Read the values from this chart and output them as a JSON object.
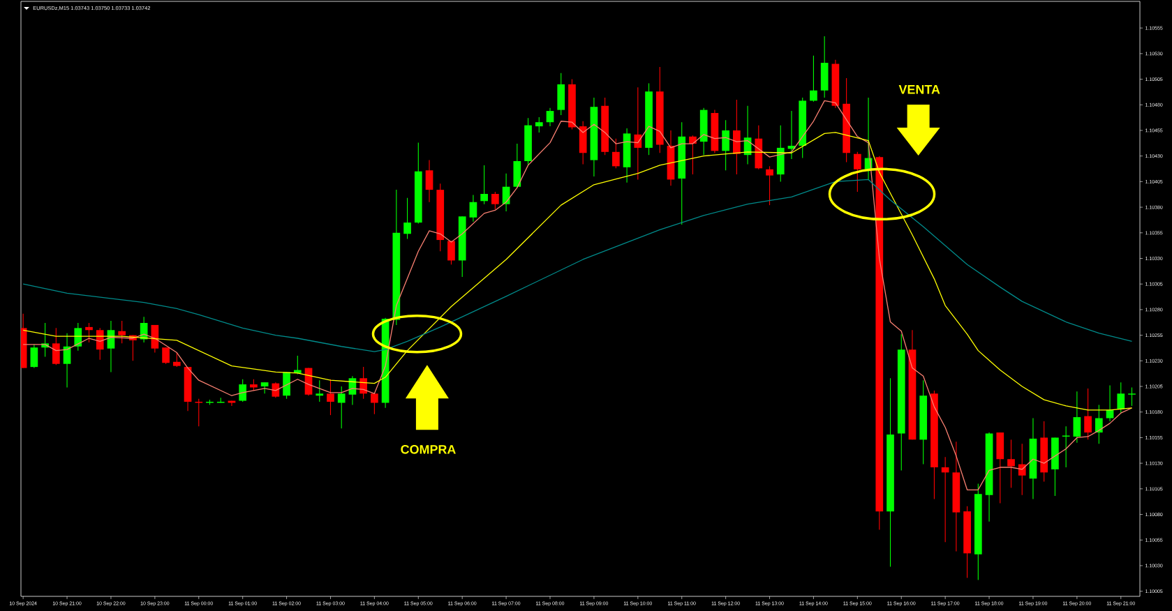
{
  "chart_data": {
    "type": "candlestick",
    "annotations": [
      "EURUSDz,M15  1.03743 1.03750 1.03733 1.03742",
      "COMPRA",
      "VENTA"
    ],
    "x": [
      "2024-09-10T20:00",
      "2024-09-10T20:15",
      "2024-09-10T20:30",
      "2024-09-10T20:45",
      "2024-09-10T21:00",
      "2024-09-10T21:15",
      "2024-09-10T21:30",
      "2024-09-10T21:45",
      "2024-09-10T22:00",
      "2024-09-10T22:15",
      "2024-09-10T22:30",
      "2024-09-10T22:45",
      "2024-09-10T23:00",
      "2024-09-10T23:15",
      "2024-09-10T23:30",
      "2024-09-10T23:45",
      "2024-09-11T00:00",
      "2024-09-11T00:15",
      "2024-09-11T00:30",
      "2024-09-11T00:45",
      "2024-09-11T01:00",
      "2024-09-11T01:15",
      "2024-09-11T01:30",
      "2024-09-11T01:45",
      "2024-09-11T02:00",
      "2024-09-11T02:15",
      "2024-09-11T02:30",
      "2024-09-11T02:45",
      "2024-09-11T03:00",
      "2024-09-11T03:15",
      "2024-09-11T03:30",
      "2024-09-11T03:45",
      "2024-09-11T04:00",
      "2024-09-11T04:15",
      "2024-09-11T04:30",
      "2024-09-11T04:45",
      "2024-09-11T05:00",
      "2024-09-11T05:15",
      "2024-09-11T05:30",
      "2024-09-11T05:45",
      "2024-09-11T06:00",
      "2024-09-11T06:15",
      "2024-09-11T06:30",
      "2024-09-11T06:45",
      "2024-09-11T07:00",
      "2024-09-11T07:15",
      "2024-09-11T07:30",
      "2024-09-11T07:45",
      "2024-09-11T08:00",
      "2024-09-11T08:15",
      "2024-09-11T08:30",
      "2024-09-11T08:45",
      "2024-09-11T09:00",
      "2024-09-11T09:15",
      "2024-09-11T09:30",
      "2024-09-11T09:45",
      "2024-09-11T10:00",
      "2024-09-11T10:15",
      "2024-09-11T10:30",
      "2024-09-11T10:45",
      "2024-09-11T11:00",
      "2024-09-11T11:15",
      "2024-09-11T11:30",
      "2024-09-11T11:45",
      "2024-09-11T12:00",
      "2024-09-11T12:15",
      "2024-09-11T12:30",
      "2024-09-11T12:45",
      "2024-09-11T13:00",
      "2024-09-11T13:15",
      "2024-09-11T13:30",
      "2024-09-11T13:45",
      "2024-09-11T14:00",
      "2024-09-11T14:15",
      "2024-09-11T14:30",
      "2024-09-11T14:45",
      "2024-09-11T15:00",
      "2024-09-11T15:15",
      "2024-09-11T15:30",
      "2024-09-11T15:45",
      "2024-09-11T16:00",
      "2024-09-11T16:15",
      "2024-09-11T16:30",
      "2024-09-11T16:45",
      "2024-09-11T17:00",
      "2024-09-11T17:15",
      "2024-09-11T17:30",
      "2024-09-11T17:45",
      "2024-09-11T18:00",
      "2024-09-11T18:15",
      "2024-09-11T18:30",
      "2024-09-11T18:45",
      "2024-09-11T19:00",
      "2024-09-11T19:15",
      "2024-09-11T19:30",
      "2024-09-11T19:45",
      "2024-09-11T20:00",
      "2024-09-11T20:15",
      "2024-09-11T20:30",
      "2024-09-11T20:45",
      "2024-09-11T21:00",
      "2024-09-11T21:15"
    ],
    "ohlc": [
      [
        1.10262,
        1.10276,
        1.10223,
        1.10223
      ],
      [
        1.10224,
        1.10246,
        1.10223,
        1.10243
      ],
      [
        1.10243,
        1.10267,
        1.10234,
        1.10247
      ],
      [
        1.10247,
        1.10262,
        1.10226,
        1.10227
      ],
      [
        1.10227,
        1.10257,
        1.10204,
        1.10244
      ],
      [
        1.10244,
        1.10267,
        1.1024,
        1.10262
      ],
      [
        1.10263,
        1.10267,
        1.10248,
        1.1026
      ],
      [
        1.1026,
        1.10262,
        1.10231,
        1.10241
      ],
      [
        1.10242,
        1.10269,
        1.10219,
        1.1026
      ],
      [
        1.10259,
        1.10269,
        1.10247,
        1.10255
      ],
      [
        1.10255,
        1.10255,
        1.1023,
        1.1025
      ],
      [
        1.10251,
        1.10273,
        1.10248,
        1.10267
      ],
      [
        1.10265,
        1.10265,
        1.10238,
        1.10242
      ],
      [
        1.10243,
        1.10243,
        1.10227,
        1.10228
      ],
      [
        1.10229,
        1.10238,
        1.10224,
        1.10225
      ],
      [
        1.10224,
        1.10224,
        1.10181,
        1.1019
      ],
      [
        1.1019,
        1.10193,
        1.10166,
        1.10189
      ],
      [
        1.10189,
        1.10192,
        1.10187,
        1.1019
      ],
      [
        1.10189,
        1.10194,
        1.10189,
        1.1019
      ],
      [
        1.10191,
        1.10191,
        1.10186,
        1.10189
      ],
      [
        1.10191,
        1.10212,
        1.1019,
        1.10207
      ],
      [
        1.10207,
        1.10212,
        1.10201,
        1.10204
      ],
      [
        1.10205,
        1.10209,
        1.10198,
        1.10209
      ],
      [
        1.10208,
        1.10209,
        1.10194,
        1.10195
      ],
      [
        1.10196,
        1.10219,
        1.10193,
        1.10219
      ],
      [
        1.10218,
        1.10235,
        1.10217,
        1.10221
      ],
      [
        1.10223,
        1.10223,
        1.10196,
        1.10197
      ],
      [
        1.10196,
        1.10211,
        1.1019,
        1.10198
      ],
      [
        1.10198,
        1.10212,
        1.10177,
        1.1019
      ],
      [
        1.10189,
        1.10205,
        1.10164,
        1.10198
      ],
      [
        1.10197,
        1.10215,
        1.10187,
        1.10213
      ],
      [
        1.10213,
        1.10224,
        1.10193,
        1.10198
      ],
      [
        1.10198,
        1.10198,
        1.10178,
        1.10189
      ],
      [
        1.10189,
        1.10272,
        1.10184,
        1.10271
      ],
      [
        1.1027,
        1.10397,
        1.10265,
        1.10355
      ],
      [
        1.10354,
        1.10389,
        1.10349,
        1.10365
      ],
      [
        1.10365,
        1.10443,
        1.10364,
        1.10415
      ],
      [
        1.10416,
        1.10426,
        1.10385,
        1.10397
      ],
      [
        1.10397,
        1.10403,
        1.10337,
        1.10348
      ],
      [
        1.10347,
        1.10347,
        1.10324,
        1.10328
      ],
      [
        1.10328,
        1.10371,
        1.10312,
        1.10371
      ],
      [
        1.1037,
        1.10392,
        1.10366,
        1.10385
      ],
      [
        1.10386,
        1.10421,
        1.10383,
        1.10393
      ],
      [
        1.10393,
        1.10395,
        1.10378,
        1.10383
      ],
      [
        1.10383,
        1.10413,
        1.10376,
        1.104
      ],
      [
        1.104,
        1.10442,
        1.10399,
        1.10425
      ],
      [
        1.10425,
        1.10467,
        1.10421,
        1.1046
      ],
      [
        1.10459,
        1.10468,
        1.10453,
        1.10463
      ],
      [
        1.10463,
        1.10477,
        1.10459,
        1.10474
      ],
      [
        1.10475,
        1.10511,
        1.1047,
        1.105
      ],
      [
        1.105,
        1.10505,
        1.10456,
        1.10458
      ],
      [
        1.10459,
        1.10464,
        1.10422,
        1.10433
      ],
      [
        1.10426,
        1.10487,
        1.1041,
        1.10478
      ],
      [
        1.10479,
        1.10487,
        1.10431,
        1.10434
      ],
      [
        1.10434,
        1.10447,
        1.10418,
        1.1042
      ],
      [
        1.10419,
        1.10457,
        1.10404,
        1.10452
      ],
      [
        1.10451,
        1.10497,
        1.10407,
        1.10438
      ],
      [
        1.10438,
        1.10501,
        1.10431,
        1.10493
      ],
      [
        1.10493,
        1.10517,
        1.10433,
        1.10441
      ],
      [
        1.1044,
        1.10455,
        1.10401,
        1.10407
      ],
      [
        1.10408,
        1.10463,
        1.10363,
        1.10449
      ],
      [
        1.10449,
        1.1045,
        1.10412,
        1.10442
      ],
      [
        1.10444,
        1.10477,
        1.10431,
        1.10475
      ],
      [
        1.10472,
        1.10475,
        1.10433,
        1.10435
      ],
      [
        1.10435,
        1.10465,
        1.10416,
        1.10455
      ],
      [
        1.10455,
        1.10485,
        1.10412,
        1.10432
      ],
      [
        1.10431,
        1.10479,
        1.10422,
        1.10448
      ],
      [
        1.10447,
        1.1046,
        1.10417,
        1.10418
      ],
      [
        1.10417,
        1.1042,
        1.10382,
        1.10411
      ],
      [
        1.10412,
        1.1046,
        1.10405,
        1.10438
      ],
      [
        1.10437,
        1.10474,
        1.10427,
        1.1044
      ],
      [
        1.1044,
        1.10487,
        1.10428,
        1.10484
      ],
      [
        1.10484,
        1.10528,
        1.10483,
        1.10494
      ],
      [
        1.10494,
        1.10547,
        1.10487,
        1.10521
      ],
      [
        1.1052,
        1.10524,
        1.10477,
        1.10479
      ],
      [
        1.10481,
        1.10506,
        1.10424,
        1.10433
      ],
      [
        1.10432,
        1.10434,
        1.10395,
        1.10417
      ],
      [
        1.10417,
        1.10487,
        1.10407,
        1.10428
      ],
      [
        1.10429,
        1.1043,
        1.10065,
        1.10083
      ],
      [
        1.10083,
        1.10213,
        1.10029,
        1.10158
      ],
      [
        1.10159,
        1.10256,
        1.10123,
        1.10241
      ],
      [
        1.10241,
        1.1026,
        1.10153,
        1.10153
      ],
      [
        1.10153,
        1.10211,
        1.10129,
        1.10196
      ],
      [
        1.10198,
        1.10201,
        1.10095,
        1.10126
      ],
      [
        1.10126,
        1.10136,
        1.10053,
        1.10121
      ],
      [
        1.10121,
        1.10151,
        1.10044,
        1.10082
      ],
      [
        1.10083,
        1.10088,
        1.10018,
        1.10042
      ],
      [
        1.10041,
        1.1011,
        1.10016,
        1.101
      ],
      [
        1.10099,
        1.1016,
        1.10073,
        1.10159
      ],
      [
        1.1016,
        1.1016,
        1.10091,
        1.10134
      ],
      [
        1.10134,
        1.10153,
        1.10106,
        1.10127
      ],
      [
        1.10129,
        1.10149,
        1.10099,
        1.10118
      ],
      [
        1.10115,
        1.10174,
        1.10095,
        1.10154
      ],
      [
        1.10155,
        1.10171,
        1.10112,
        1.10121
      ],
      [
        1.10124,
        1.10155,
        1.10098,
        1.10155
      ],
      [
        1.10156,
        1.10166,
        1.10126,
        1.10157
      ],
      [
        1.10156,
        1.102,
        1.1015,
        1.10175
      ],
      [
        1.10176,
        1.10203,
        1.10153,
        1.1016
      ],
      [
        1.1016,
        1.10187,
        1.10149,
        1.10174
      ],
      [
        1.10174,
        1.10206,
        1.10171,
        1.10182
      ],
      [
        1.10183,
        1.10209,
        1.10179,
        1.10198
      ],
      [
        1.10197,
        1.10204,
        1.10186,
        1.10198
      ]
    ],
    "series": [
      {
        "type": "line",
        "color": "#fa8072",
        "x": [
          "2024-09-10T20:00",
          "2024-09-10T20:30",
          "2024-09-10T20:45",
          "2024-09-10T21:00",
          "2024-09-10T21:30",
          "2024-09-10T21:45",
          "2024-09-10T22:00",
          "2024-09-10T22:30",
          "2024-09-10T22:45",
          "2024-09-10T23:00",
          "2024-09-10T23:30",
          "2024-09-10T23:45",
          "2024-09-11T00:00",
          "2024-09-11T00:45",
          "2024-09-11T01:00",
          "2024-09-11T01:30",
          "2024-09-11T01:45",
          "2024-09-11T02:15",
          "2024-09-11T02:30",
          "2024-09-11T03:00",
          "2024-09-11T03:15",
          "2024-09-11T03:30",
          "2024-09-11T03:45",
          "2024-09-11T04:00",
          "2024-09-11T04:15",
          "2024-09-11T04:30",
          "2024-09-11T05:00",
          "2024-09-11T05:15",
          "2024-09-11T05:30",
          "2024-09-11T05:45",
          "2024-09-11T06:00",
          "2024-09-11T06:30",
          "2024-09-11T06:45",
          "2024-09-11T07:00",
          "2024-09-11T07:15",
          "2024-09-11T07:30",
          "2024-09-11T08:00",
          "2024-09-11T08:15",
          "2024-09-11T08:30",
          "2024-09-11T08:45",
          "2024-09-11T09:00",
          "2024-09-11T09:15",
          "2024-09-11T09:30",
          "2024-09-11T09:45",
          "2024-09-11T10:00",
          "2024-09-11T10:15",
          "2024-09-11T10:30",
          "2024-09-11T10:45",
          "2024-09-11T11:00",
          "2024-09-11T11:15",
          "2024-09-11T11:30",
          "2024-09-11T11:45",
          "2024-09-11T12:00",
          "2024-09-11T12:15",
          "2024-09-11T12:30",
          "2024-09-11T13:00",
          "2024-09-11T13:30",
          "2024-09-11T14:00",
          "2024-09-11T14:15",
          "2024-09-11T14:30",
          "2024-09-11T15:00",
          "2024-09-11T15:15",
          "2024-09-11T15:30",
          "2024-09-11T15:45",
          "2024-09-11T16:00",
          "2024-09-11T16:15",
          "2024-09-11T16:30",
          "2024-09-11T16:45",
          "2024-09-11T17:00",
          "2024-09-11T17:15",
          "2024-09-11T17:30",
          "2024-09-11T17:45",
          "2024-09-11T18:00",
          "2024-09-11T18:15",
          "2024-09-11T18:30",
          "2024-09-11T18:45",
          "2024-09-11T19:00",
          "2024-09-11T19:15",
          "2024-09-11T19:30",
          "2024-09-11T19:45",
          "2024-09-11T20:00",
          "2024-09-11T20:15",
          "2024-09-11T20:30",
          "2024-09-11T20:45",
          "2024-09-11T21:00",
          "2024-09-11T21:15"
        ],
        "values": [
          1.10246,
          1.10246,
          1.1024,
          1.10241,
          1.10252,
          1.10249,
          1.10253,
          1.10252,
          1.10256,
          1.10252,
          1.10238,
          1.10223,
          1.10211,
          1.10196,
          1.10199,
          1.10203,
          1.10201,
          1.10212,
          1.10207,
          1.10199,
          1.10199,
          1.10203,
          1.10202,
          1.10198,
          1.10225,
          1.10284,
          1.10337,
          1.10357,
          1.10354,
          1.10346,
          1.10354,
          1.10374,
          1.10377,
          1.10385,
          1.10399,
          1.10421,
          1.10443,
          1.10464,
          1.10463,
          1.10453,
          1.10461,
          1.10453,
          1.10442,
          1.10444,
          1.10443,
          1.10459,
          1.10454,
          1.10438,
          1.10442,
          1.10442,
          1.10451,
          1.10447,
          1.10448,
          1.10444,
          1.10445,
          1.10429,
          1.10434,
          1.10464,
          1.10484,
          1.10482,
          1.10449,
          1.10443,
          1.1033,
          1.10268,
          1.10259,
          1.10223,
          1.10215,
          1.10185,
          1.10165,
          1.10137,
          1.10104,
          1.10104,
          1.10123,
          1.10126,
          1.10126,
          1.10124,
          1.10134,
          1.1013,
          1.10137,
          1.10144,
          1.10155,
          1.10156,
          1.10162,
          1.10169,
          1.10179,
          1.10184
        ]
      },
      {
        "type": "line",
        "color": "#ffff00",
        "x": [
          "2024-09-10T20:00",
          "2024-09-10T20:45",
          "2024-09-10T22:15",
          "2024-09-10T23:30",
          "2024-09-11T00:45",
          "2024-09-11T01:45",
          "2024-09-11T02:15",
          "2024-09-11T03:00",
          "2024-09-11T04:00",
          "2024-09-11T04:15",
          "2024-09-11T04:45",
          "2024-09-11T05:45",
          "2024-09-11T07:00",
          "2024-09-11T08:15",
          "2024-09-11T09:00",
          "2024-09-11T10:00",
          "2024-09-11T10:30",
          "2024-09-11T11:30",
          "2024-09-11T12:30",
          "2024-09-11T13:30",
          "2024-09-11T14:15",
          "2024-09-11T14:30",
          "2024-09-11T15:15",
          "2024-09-11T15:30",
          "2024-09-11T16:15",
          "2024-09-11T16:45",
          "2024-09-11T17:00",
          "2024-09-11T17:30",
          "2024-09-11T17:45",
          "2024-09-11T18:15",
          "2024-09-11T18:45",
          "2024-09-11T19:15",
          "2024-09-11T19:45",
          "2024-09-11T20:15",
          "2024-09-11T20:45",
          "2024-09-11T21:15"
        ],
        "values": [
          1.1026,
          1.10254,
          1.10254,
          1.1025,
          1.10225,
          1.10219,
          1.10218,
          1.10211,
          1.10208,
          1.10214,
          1.1024,
          1.10283,
          1.10329,
          1.10382,
          1.10402,
          1.10413,
          1.10421,
          1.1043,
          1.10434,
          1.10433,
          1.10452,
          1.10453,
          1.10445,
          1.10414,
          1.10353,
          1.1031,
          1.10284,
          1.10256,
          1.1024,
          1.10221,
          1.10205,
          1.10192,
          1.10186,
          1.10182,
          1.10182,
          1.10184
        ]
      },
      {
        "type": "line",
        "color": "#008b8b",
        "x": [
          "2024-09-10T20:00",
          "2024-09-10T21:00",
          "2024-09-10T22:45",
          "2024-09-10T23:30",
          "2024-09-11T00:00",
          "2024-09-11T01:00",
          "2024-09-11T01:45",
          "2024-09-11T02:15",
          "2024-09-11T03:15",
          "2024-09-11T04:00",
          "2024-09-11T04:15",
          "2024-09-11T04:45",
          "2024-09-11T05:30",
          "2024-09-11T07:00",
          "2024-09-11T08:45",
          "2024-09-11T10:30",
          "2024-09-11T11:00",
          "2024-09-11T11:30",
          "2024-09-11T12:30",
          "2024-09-11T13:30",
          "2024-09-11T14:30",
          "2024-09-11T15:15",
          "2024-09-11T15:45",
          "2024-09-11T16:30",
          "2024-09-11T17:30",
          "2024-09-11T18:15",
          "2024-09-11T18:45",
          "2024-09-11T19:45",
          "2024-09-11T20:30",
          "2024-09-11T21:15"
        ],
        "values": [
          1.10305,
          1.10296,
          1.10287,
          1.10281,
          1.10275,
          1.10262,
          1.10255,
          1.10252,
          1.10244,
          1.10239,
          1.10241,
          1.10249,
          1.10263,
          1.10293,
          1.10329,
          1.10358,
          1.10365,
          1.10372,
          1.10383,
          1.1039,
          1.10405,
          1.10407,
          1.10387,
          1.10361,
          1.10324,
          1.10302,
          1.10288,
          1.10268,
          1.10257,
          1.10249
        ]
      }
    ],
    "xlim": [
      "2024-09-10T19:57",
      "2024-09-11T21:26"
    ],
    "ylim": [
      1.1,
      1.10581
    ],
    "xticks": [
      {
        "value": "2024-09-10T20:00",
        "label": "10 Sep 2024"
      },
      {
        "value": "2024-09-10T21:00",
        "label": "10 Sep 21:00"
      },
      {
        "value": "2024-09-10T22:00",
        "label": "10 Sep 22:00"
      },
      {
        "value": "2024-09-10T23:00",
        "label": "10 Sep 23:00"
      },
      {
        "value": "2024-09-11T00:00",
        "label": "11 Sep 00:00"
      },
      {
        "value": "2024-09-11T01:00",
        "label": "11 Sep 01:00"
      },
      {
        "value": "2024-09-11T02:00",
        "label": "11 Sep 02:00"
      },
      {
        "value": "2024-09-11T03:00",
        "label": "11 Sep 03:00"
      },
      {
        "value": "2024-09-11T04:00",
        "label": "11 Sep 04:00"
      },
      {
        "value": "2024-09-11T05:00",
        "label": "11 Sep 05:00"
      },
      {
        "value": "2024-09-11T06:00",
        "label": "11 Sep 06:00"
      },
      {
        "value": "2024-09-11T07:00",
        "label": "11 Sep 07:00"
      },
      {
        "value": "2024-09-11T08:00",
        "label": "11 Sep 08:00"
      },
      {
        "value": "2024-09-11T09:00",
        "label": "11 Sep 09:00"
      },
      {
        "value": "2024-09-11T10:00",
        "label": "11 Sep 10:00"
      },
      {
        "value": "2024-09-11T11:00",
        "label": "11 Sep 11:00"
      },
      {
        "value": "2024-09-11T12:00",
        "label": "11 Sep 12:00"
      },
      {
        "value": "2024-09-11T13:00",
        "label": "11 Sep 13:00"
      },
      {
        "value": "2024-09-11T14:00",
        "label": "11 Sep 14:00"
      },
      {
        "value": "2024-09-11T15:00",
        "label": "11 Sep 15:00"
      },
      {
        "value": "2024-09-11T16:00",
        "label": "11 Sep 16:00"
      },
      {
        "value": "2024-09-11T17:00",
        "label": "11 Sep 17:00"
      },
      {
        "value": "2024-09-11T18:00",
        "label": "11 Sep 18:00"
      },
      {
        "value": "2024-09-11T19:00",
        "label": "11 Sep 19:00"
      },
      {
        "value": "2024-09-11T20:00",
        "label": "11 Sep 20:00"
      },
      {
        "value": "2024-09-11T21:00",
        "label": "11 Sep 21:00"
      }
    ],
    "yticks": [
      {
        "value": 1.10005,
        "label": "1.10005"
      },
      {
        "value": 1.1003,
        "label": "1.10030"
      },
      {
        "value": 1.10055,
        "label": "1.10055"
      },
      {
        "value": 1.1008,
        "label": "1.10080"
      },
      {
        "value": 1.10105,
        "label": "1.10105"
      },
      {
        "value": 1.1013,
        "label": "1.10130"
      },
      {
        "value": 1.10155,
        "label": "1.10155"
      },
      {
        "value": 1.1018,
        "label": "1.10180"
      },
      {
        "value": 1.10205,
        "label": "1.10205"
      },
      {
        "value": 1.1023,
        "label": "1.10230"
      },
      {
        "value": 1.10255,
        "label": "1.10255"
      },
      {
        "value": 1.1028,
        "label": "1.10280"
      },
      {
        "value": 1.10305,
        "label": "1.10305"
      },
      {
        "value": 1.1033,
        "label": "1.10330"
      },
      {
        "value": 1.10355,
        "label": "1.10355"
      },
      {
        "value": 1.1038,
        "label": "1.10380"
      },
      {
        "value": 1.10405,
        "label": "1.10405"
      },
      {
        "value": 1.1043,
        "label": "1.10430"
      },
      {
        "value": 1.10455,
        "label": "1.10455"
      },
      {
        "value": 1.1048,
        "label": "1.10480"
      },
      {
        "value": 1.10505,
        "label": "1.10505"
      },
      {
        "value": 1.1053,
        "label": "1.10530"
      },
      {
        "value": 1.10555,
        "label": "1.10555"
      }
    ]
  }
}
